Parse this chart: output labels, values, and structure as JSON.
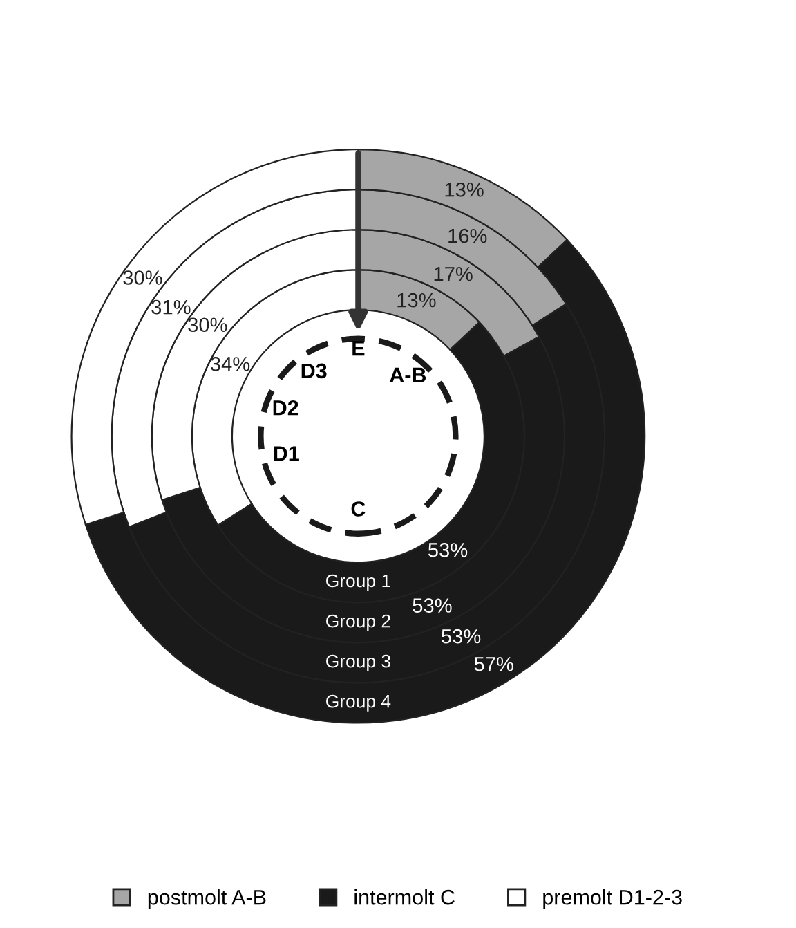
{
  "chart_data": {
    "type": "donut",
    "categories": [
      "postmolt A-B",
      "intermolt C",
      "premolt D1-2-3"
    ],
    "colors": [
      "#a6a6a6",
      "#1a1a1a",
      "#ffffff"
    ],
    "series": [
      {
        "name": "Group 1",
        "values": [
          13,
          53,
          34
        ],
        "value_labels": [
          "13%",
          "53%",
          "34%"
        ]
      },
      {
        "name": "Group 2",
        "values": [
          17,
          53,
          30
        ],
        "value_labels": [
          "17%",
          "53%",
          "30%"
        ]
      },
      {
        "name": "Group 3",
        "values": [
          16,
          53,
          31
        ],
        "value_labels": [
          "16%",
          "53%",
          "31%"
        ]
      },
      {
        "name": "Group 4",
        "values": [
          13,
          57,
          30
        ],
        "value_labels": [
          "13%",
          "57%",
          "30%"
        ]
      }
    ],
    "annotations": [
      "E",
      "A-B",
      "C",
      "D1",
      "D2",
      "D3"
    ],
    "legend": "bottom"
  }
}
